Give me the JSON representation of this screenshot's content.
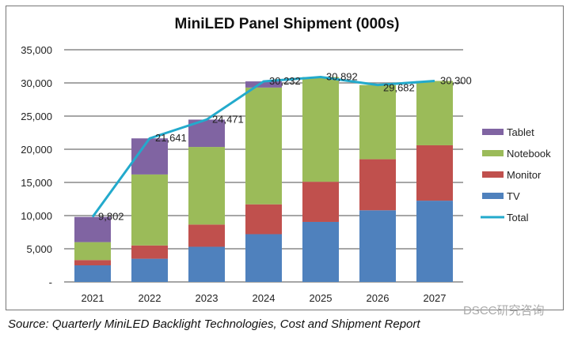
{
  "chart_data": {
    "type": "bar",
    "stacked": true,
    "title": "MiniLED Panel Shipment (000s)",
    "xlabel": "",
    "ylabel": "",
    "ylim": [
      0,
      35000
    ],
    "yticks": [
      0,
      5000,
      10000,
      15000,
      20000,
      25000,
      30000,
      35000
    ],
    "ytick_labels": [
      "-",
      "5,000",
      "10,000",
      "15,000",
      "20,000",
      "25,000",
      "30,000",
      "35,000"
    ],
    "grid": true,
    "legend_position": "right",
    "categories": [
      "2021",
      "2022",
      "2023",
      "2024",
      "2025",
      "2026",
      "2027"
    ],
    "series": [
      {
        "name": "TV",
        "color": "#4f81bd",
        "values": [
          2500,
          3500,
          5300,
          7200,
          9050,
          10800,
          12250
        ]
      },
      {
        "name": "Monitor",
        "color": "#c0504d",
        "values": [
          800,
          2000,
          3350,
          4500,
          6050,
          7700,
          8350
        ]
      },
      {
        "name": "Notebook",
        "color": "#9bbb59",
        "values": [
          2700,
          10700,
          11700,
          17600,
          15792,
          11182,
          9700
        ]
      },
      {
        "name": "Tablet",
        "color": "#8064a2",
        "values": [
          3802,
          5441,
          4121,
          932,
          0,
          0,
          0
        ]
      }
    ],
    "line": {
      "name": "Total",
      "color": "#23aacc",
      "values": [
        9802,
        21641,
        24471,
        30232,
        30892,
        29682,
        30300
      ],
      "labels": [
        "9,802",
        "21,641",
        "24,471",
        "30,232",
        "30,892",
        "29,682",
        "30,300"
      ]
    },
    "legend": [
      "Tablet",
      "Notebook",
      "Monitor",
      "TV",
      "Total"
    ]
  },
  "source": "Source: Quarterly MiniLED Backlight Technologies, Cost and Shipment Report",
  "watermark": "DSCC研究咨询"
}
